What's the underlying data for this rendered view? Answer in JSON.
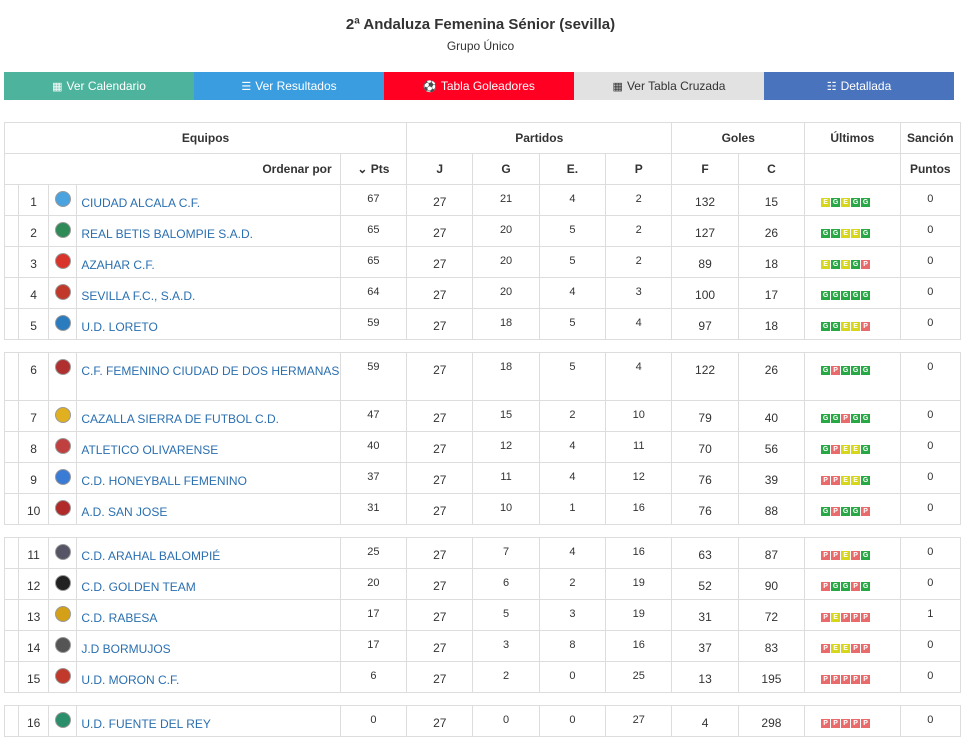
{
  "header": {
    "title": "2ª Andaluza Femenina Sénior (sevilla)",
    "subtitle": "Grupo Único"
  },
  "buttons": [
    {
      "label": "Ver Calendario",
      "icon": "calendar-icon",
      "glyph": "▦",
      "color": "#4db39c"
    },
    {
      "label": "Ver Resultados",
      "icon": "list-icon",
      "glyph": "☰",
      "color": "#3a9de0"
    },
    {
      "label": "Tabla Goleadores",
      "icon": "soccer-ball-icon",
      "glyph": "⚽",
      "color": "#ff0022"
    },
    {
      "label": "Ver Tabla Cruzada",
      "icon": "grid-icon",
      "glyph": "▦",
      "color": "#e2e2e2",
      "text_color": "#333"
    },
    {
      "label": "Detallada",
      "icon": "detail-list-icon",
      "glyph": "☷",
      "color": "#4a73bd"
    }
  ],
  "table": {
    "group_headers": {
      "teams": "Equipos",
      "matches": "Partidos",
      "goals": "Goles",
      "last": "Últimos",
      "sanction": "Sanción"
    },
    "sort_label": "Ordenar por",
    "sort_icon": "chevron-down-icon",
    "columns": {
      "pts": "Pts",
      "j": "J",
      "g": "G",
      "e": "E.",
      "p": "P",
      "f": "F",
      "c": "C",
      "points": "Puntos"
    },
    "rows": [
      {
        "pos": "1",
        "name": "CIUDAD ALCALA C.F.",
        "pts": "67",
        "j": "27",
        "g": "21",
        "e": "4",
        "p": "2",
        "f": "132",
        "c": "15",
        "last": [
          "E",
          "G",
          "E",
          "G",
          "G"
        ],
        "sanction": "0"
      },
      {
        "pos": "2",
        "name": "REAL BETIS BALOMPIE S.A.D.",
        "pts": "65",
        "j": "27",
        "g": "20",
        "e": "5",
        "p": "2",
        "f": "127",
        "c": "26",
        "last": [
          "G",
          "G",
          "E",
          "E",
          "G"
        ],
        "sanction": "0"
      },
      {
        "pos": "3",
        "name": "AZAHAR C.F.",
        "pts": "65",
        "j": "27",
        "g": "20",
        "e": "5",
        "p": "2",
        "f": "89",
        "c": "18",
        "last": [
          "E",
          "G",
          "E",
          "G",
          "P"
        ],
        "sanction": "0"
      },
      {
        "pos": "4",
        "name": "SEVILLA F.C., S.A.D.",
        "pts": "64",
        "j": "27",
        "g": "20",
        "e": "4",
        "p": "3",
        "f": "100",
        "c": "17",
        "last": [
          "G",
          "G",
          "G",
          "G",
          "G"
        ],
        "sanction": "0"
      },
      {
        "pos": "5",
        "name": "U.D. LORETO",
        "pts": "59",
        "j": "27",
        "g": "18",
        "e": "5",
        "p": "4",
        "f": "97",
        "c": "18",
        "last": [
          "G",
          "G",
          "E",
          "E",
          "P"
        ],
        "sanction": "0",
        "sep_after": true
      },
      {
        "pos": "6",
        "name": "C.F. FEMENINO CIUDAD DE DOS HERMANAS",
        "pts": "59",
        "j": "27",
        "g": "18",
        "e": "5",
        "p": "4",
        "f": "122",
        "c": "26",
        "last": [
          "G",
          "P",
          "G",
          "G",
          "G"
        ],
        "sanction": "0"
      },
      {
        "pos": "7",
        "name": "CAZALLA SIERRA DE FUTBOL C.D.",
        "pts": "47",
        "j": "27",
        "g": "15",
        "e": "2",
        "p": "10",
        "f": "79",
        "c": "40",
        "last": [
          "G",
          "G",
          "P",
          "G",
          "G"
        ],
        "sanction": "0"
      },
      {
        "pos": "8",
        "name": "ATLETICO OLIVARENSE",
        "pts": "40",
        "j": "27",
        "g": "12",
        "e": "4",
        "p": "11",
        "f": "70",
        "c": "56",
        "last": [
          "G",
          "P",
          "E",
          "E",
          "G"
        ],
        "sanction": "0"
      },
      {
        "pos": "9",
        "name": "C.D. HONEYBALL FEMENINO",
        "pts": "37",
        "j": "27",
        "g": "11",
        "e": "4",
        "p": "12",
        "f": "76",
        "c": "39",
        "last": [
          "P",
          "P",
          "E",
          "E",
          "G"
        ],
        "sanction": "0"
      },
      {
        "pos": "10",
        "name": "A.D. SAN JOSE",
        "pts": "31",
        "j": "27",
        "g": "10",
        "e": "1",
        "p": "16",
        "f": "76",
        "c": "88",
        "last": [
          "G",
          "P",
          "G",
          "G",
          "P"
        ],
        "sanction": "0",
        "sep_after": true
      },
      {
        "pos": "11",
        "name": "C.D. ARAHAL BALOMPIÉ",
        "pts": "25",
        "j": "27",
        "g": "7",
        "e": "4",
        "p": "16",
        "f": "63",
        "c": "87",
        "last": [
          "P",
          "P",
          "E",
          "P",
          "G"
        ],
        "sanction": "0"
      },
      {
        "pos": "12",
        "name": "C.D. GOLDEN TEAM",
        "pts": "20",
        "j": "27",
        "g": "6",
        "e": "2",
        "p": "19",
        "f": "52",
        "c": "90",
        "last": [
          "P",
          "G",
          "G",
          "P",
          "G"
        ],
        "sanction": "0"
      },
      {
        "pos": "13",
        "name": "C.D. RABESA",
        "pts": "17",
        "j": "27",
        "g": "5",
        "e": "3",
        "p": "19",
        "f": "31",
        "c": "72",
        "last": [
          "P",
          "E",
          "P",
          "P",
          "P"
        ],
        "sanction": "1"
      },
      {
        "pos": "14",
        "name": "J.D BORMUJOS",
        "pts": "17",
        "j": "27",
        "g": "3",
        "e": "8",
        "p": "16",
        "f": "37",
        "c": "83",
        "last": [
          "P",
          "E",
          "E",
          "P",
          "P"
        ],
        "sanction": "0"
      },
      {
        "pos": "15",
        "name": "U.D. MORON C.F.",
        "pts": "6",
        "j": "27",
        "g": "2",
        "e": "0",
        "p": "25",
        "f": "13",
        "c": "195",
        "last": [
          "P",
          "P",
          "P",
          "P",
          "P"
        ],
        "sanction": "0",
        "sep_after": true
      },
      {
        "pos": "16",
        "name": "U.D. FUENTE DEL REY",
        "pts": "0",
        "j": "27",
        "g": "0",
        "e": "0",
        "p": "27",
        "f": "4",
        "c": "298",
        "last": [
          "P",
          "P",
          "P",
          "P",
          "P"
        ],
        "sanction": "0"
      }
    ]
  }
}
